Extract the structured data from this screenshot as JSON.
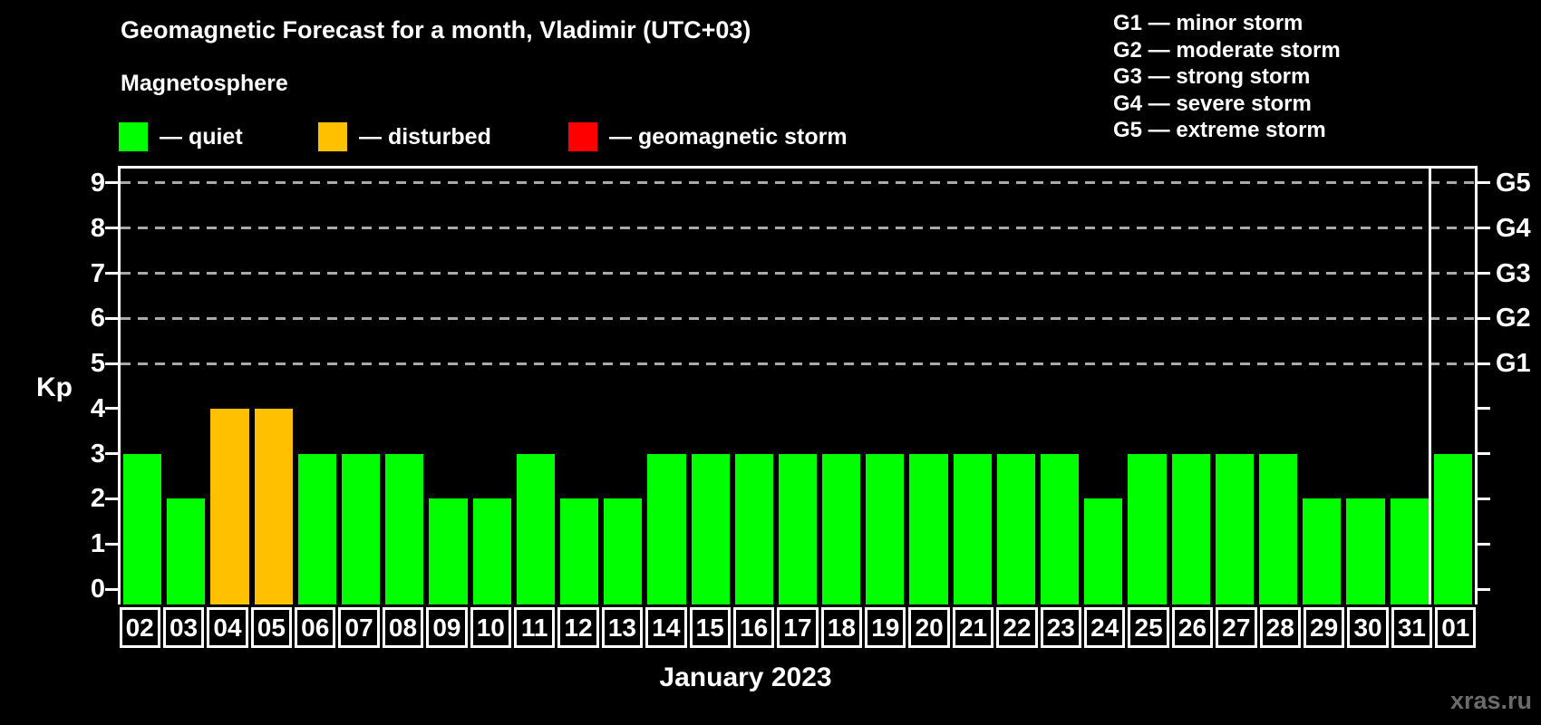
{
  "title": "Geomagnetic Forecast for a month, Vladimir (UTC+03)",
  "subtitle": "Magnetosphere",
  "legend": [
    {
      "name": "quiet",
      "label": "— quiet",
      "color": "#00ff00"
    },
    {
      "name": "disturbed",
      "label": "— disturbed",
      "color": "#ffc000"
    },
    {
      "name": "storm",
      "label": "— geomagnetic storm",
      "color": "#ff0000"
    }
  ],
  "storm_scale": [
    {
      "id": "g1",
      "label": "G1 — minor storm"
    },
    {
      "id": "g2",
      "label": "G2 — moderate storm"
    },
    {
      "id": "g3",
      "label": "G3 — strong storm"
    },
    {
      "id": "g4",
      "label": "G4 — severe storm"
    },
    {
      "id": "g5",
      "label": "G5 — extreme storm"
    }
  ],
  "watermark": "xras.ru",
  "chart_data": {
    "type": "bar",
    "title": "Geomagnetic Forecast for a month, Vladimir (UTC+03)",
    "xlabel": "January 2023",
    "ylabel": "Kp",
    "ylim": [
      0,
      9
    ],
    "y_ticks": [
      0,
      1,
      2,
      3,
      4,
      5,
      6,
      7,
      8,
      9
    ],
    "grid_dashed_at": [
      5,
      6,
      7,
      8,
      9
    ],
    "grid_color": "#aaaaaa",
    "axis_color": "#ffffff",
    "background_color": "#000000",
    "right_axis": [
      {
        "label": "G1",
        "kp": 5
      },
      {
        "label": "G2",
        "kp": 6
      },
      {
        "label": "G3",
        "kp": 7
      },
      {
        "label": "G4",
        "kp": 8
      },
      {
        "label": "G5",
        "kp": 9
      }
    ],
    "categories": [
      "02",
      "03",
      "04",
      "05",
      "06",
      "07",
      "08",
      "09",
      "10",
      "11",
      "12",
      "13",
      "14",
      "15",
      "16",
      "17",
      "18",
      "19",
      "20",
      "21",
      "22",
      "23",
      "24",
      "25",
      "26",
      "27",
      "28",
      "29",
      "30",
      "31",
      "01"
    ],
    "values": [
      3,
      2,
      4,
      4,
      3,
      3,
      3,
      2,
      2,
      3,
      2,
      2,
      3,
      3,
      3,
      3,
      3,
      3,
      3,
      3,
      3,
      3,
      2,
      3,
      3,
      3,
      3,
      2,
      2,
      2,
      3
    ],
    "states": [
      "quiet",
      "quiet",
      "disturbed",
      "disturbed",
      "quiet",
      "quiet",
      "quiet",
      "quiet",
      "quiet",
      "quiet",
      "quiet",
      "quiet",
      "quiet",
      "quiet",
      "quiet",
      "quiet",
      "quiet",
      "quiet",
      "quiet",
      "quiet",
      "quiet",
      "quiet",
      "quiet",
      "quiet",
      "quiet",
      "quiet",
      "quiet",
      "quiet",
      "quiet",
      "quiet",
      "quiet"
    ],
    "colors": {
      "quiet": "#00ff00",
      "disturbed": "#ffc000",
      "storm": "#ff0000"
    },
    "divider_before_index": 30,
    "legend_position": "top-left"
  }
}
